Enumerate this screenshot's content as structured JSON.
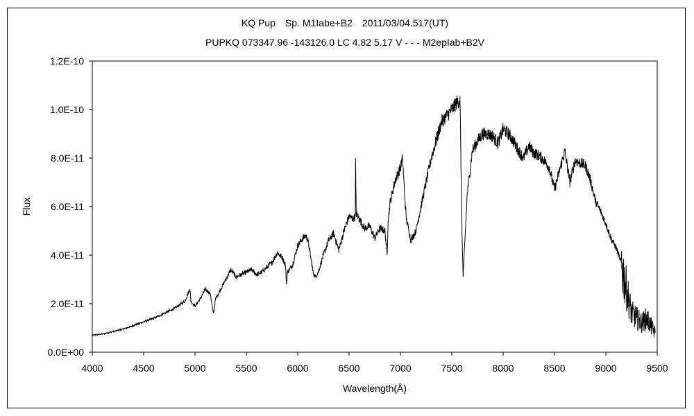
{
  "chart_data": {
    "type": "line",
    "title": "KQ Pup　Sp. M1Iabe+B2　2011/03/04.517(UT)",
    "subtitle": "PUPKQ 073347.96 -143126.0 LC 4.82 5.17 V - - - M2epIab+B2V",
    "xlabel": "Wavelength(Å)",
    "ylabel": "Flux",
    "xlim": [
      4000,
      9500
    ],
    "ylim": [
      0,
      1.2e-10
    ],
    "x_ticks": [
      4000,
      4500,
      5000,
      5500,
      6000,
      6500,
      7000,
      7500,
      8000,
      8500,
      9000,
      9500
    ],
    "x_tick_labels": [
      "4000",
      "4500",
      "5000",
      "5500",
      "6000",
      "6500",
      "7000",
      "7500",
      "8000",
      "8500",
      "9000",
      "9500"
    ],
    "y_ticks": [
      0,
      2e-11,
      4e-11,
      6e-11,
      8e-11,
      1e-10,
      1.2e-10
    ],
    "y_tick_labels": [
      "0.0E+00",
      "2.0E-11",
      "4.0E-11",
      "6.0E-11",
      "8.0E-11",
      "1.0E-10",
      "1.2E-10"
    ],
    "grid": false,
    "legend": "none",
    "series": [
      {
        "x": [
          4000,
          4100,
          4200,
          4300,
          4400,
          4500,
          4600,
          4700,
          4800,
          4900,
          4950,
          4960,
          5000,
          5050,
          5100,
          5150,
          5170,
          5180,
          5200,
          5250,
          5300,
          5350,
          5400,
          5450,
          5500,
          5550,
          5600,
          5650,
          5700,
          5750,
          5800,
          5850,
          5880,
          5890,
          5900,
          5950,
          6000,
          6050,
          6080,
          6100,
          6150,
          6170,
          6200,
          6250,
          6300,
          6350,
          6400,
          6450,
          6500,
          6540,
          6560,
          6563,
          6570,
          6600,
          6650,
          6700,
          6750,
          6800,
          6850,
          6870,
          6880,
          6900,
          6950,
          7000,
          7020,
          7050,
          7060,
          7080,
          7100,
          7150,
          7200,
          7300,
          7400,
          7500,
          7550,
          7580,
          7600,
          7610,
          7650,
          7700,
          7750,
          7800,
          7850,
          7900,
          7950,
          8000,
          8050,
          8100,
          8150,
          8200,
          8250,
          8300,
          8350,
          8400,
          8450,
          8500,
          8550,
          8600,
          8650,
          8700,
          8750,
          8800,
          8850,
          8900,
          8950,
          9000,
          9050,
          9100,
          9150,
          9200,
          9250,
          9300,
          9350,
          9400,
          9450,
          9480
        ],
        "y": [
          7e-12,
          7.5e-12,
          8.5e-12,
          9.5e-12,
          1.1e-11,
          1.25e-11,
          1.4e-11,
          1.6e-11,
          1.8e-11,
          2.1e-11,
          2.6e-11,
          2.1e-11,
          1.9e-11,
          2.2e-11,
          2.6e-11,
          2.4e-11,
          1.8e-11,
          1.6e-11,
          2.2e-11,
          2.6e-11,
          3e-11,
          3.4e-11,
          3.1e-11,
          3.2e-11,
          3.3e-11,
          3.4e-11,
          3.2e-11,
          3.3e-11,
          3.5e-11,
          3.7e-11,
          4.1e-11,
          3.9e-11,
          3.6e-11,
          2.8e-11,
          3.3e-11,
          3.6e-11,
          4.4e-11,
          4.7e-11,
          4.8e-11,
          4.6e-11,
          3.3e-11,
          3.1e-11,
          3.3e-11,
          4e-11,
          4.6e-11,
          4.9e-11,
          4.2e-11,
          5e-11,
          5.6e-11,
          5.5e-11,
          5.6e-11,
          8e-11,
          5.7e-11,
          5.5e-11,
          5.1e-11,
          5.2e-11,
          4.7e-11,
          5.1e-11,
          5e-11,
          4e-11,
          5.4e-11,
          6.2e-11,
          7.1e-11,
          7.6e-11,
          8e-11,
          5.9e-11,
          5.4e-11,
          5.1e-11,
          4.6e-11,
          5e-11,
          6e-11,
          8e-11,
          9.5e-11,
          1e-10,
          1.03e-10,
          1.04e-10,
          4.8e-11,
          3.1e-11,
          6.5e-11,
          8.3e-11,
          8.7e-11,
          9e-11,
          9e-11,
          8.9e-11,
          8.6e-11,
          9.2e-11,
          9e-11,
          8.7e-11,
          8.3e-11,
          8e-11,
          8.5e-11,
          8.2e-11,
          8.1e-11,
          7.9e-11,
          7.6e-11,
          6.7e-11,
          7.5e-11,
          8.3e-11,
          7e-11,
          7.9e-11,
          7.8e-11,
          7.7e-11,
          7.1e-11,
          6.2e-11,
          5.8e-11,
          5.3e-11,
          4.7e-11,
          4.3e-11,
          3.7e-11,
          2.6e-11,
          1.6e-11,
          1.4e-11,
          1.2e-11,
          1.4e-11,
          1e-11,
          8e-12
        ]
      }
    ]
  }
}
